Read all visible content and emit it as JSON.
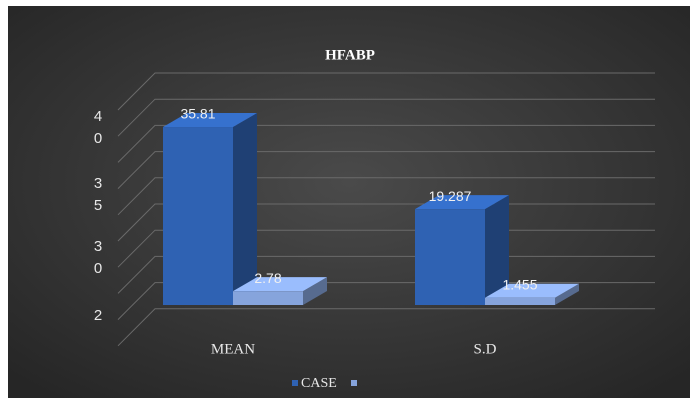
{
  "chart_data": {
    "type": "bar3d",
    "title": "HFABP",
    "categories": [
      "MEAN",
      "S.D"
    ],
    "series": [
      {
        "name": "CASE",
        "color": "#2f62b3",
        "values": [
          35.81,
          19.287
        ]
      },
      {
        "name": null,
        "color": "#86a4dc",
        "values": [
          2.78,
          1.455
        ]
      }
    ],
    "y_axis_labels": [
      "40",
      "35",
      "30",
      "2"
    ],
    "legend": "bottom"
  }
}
